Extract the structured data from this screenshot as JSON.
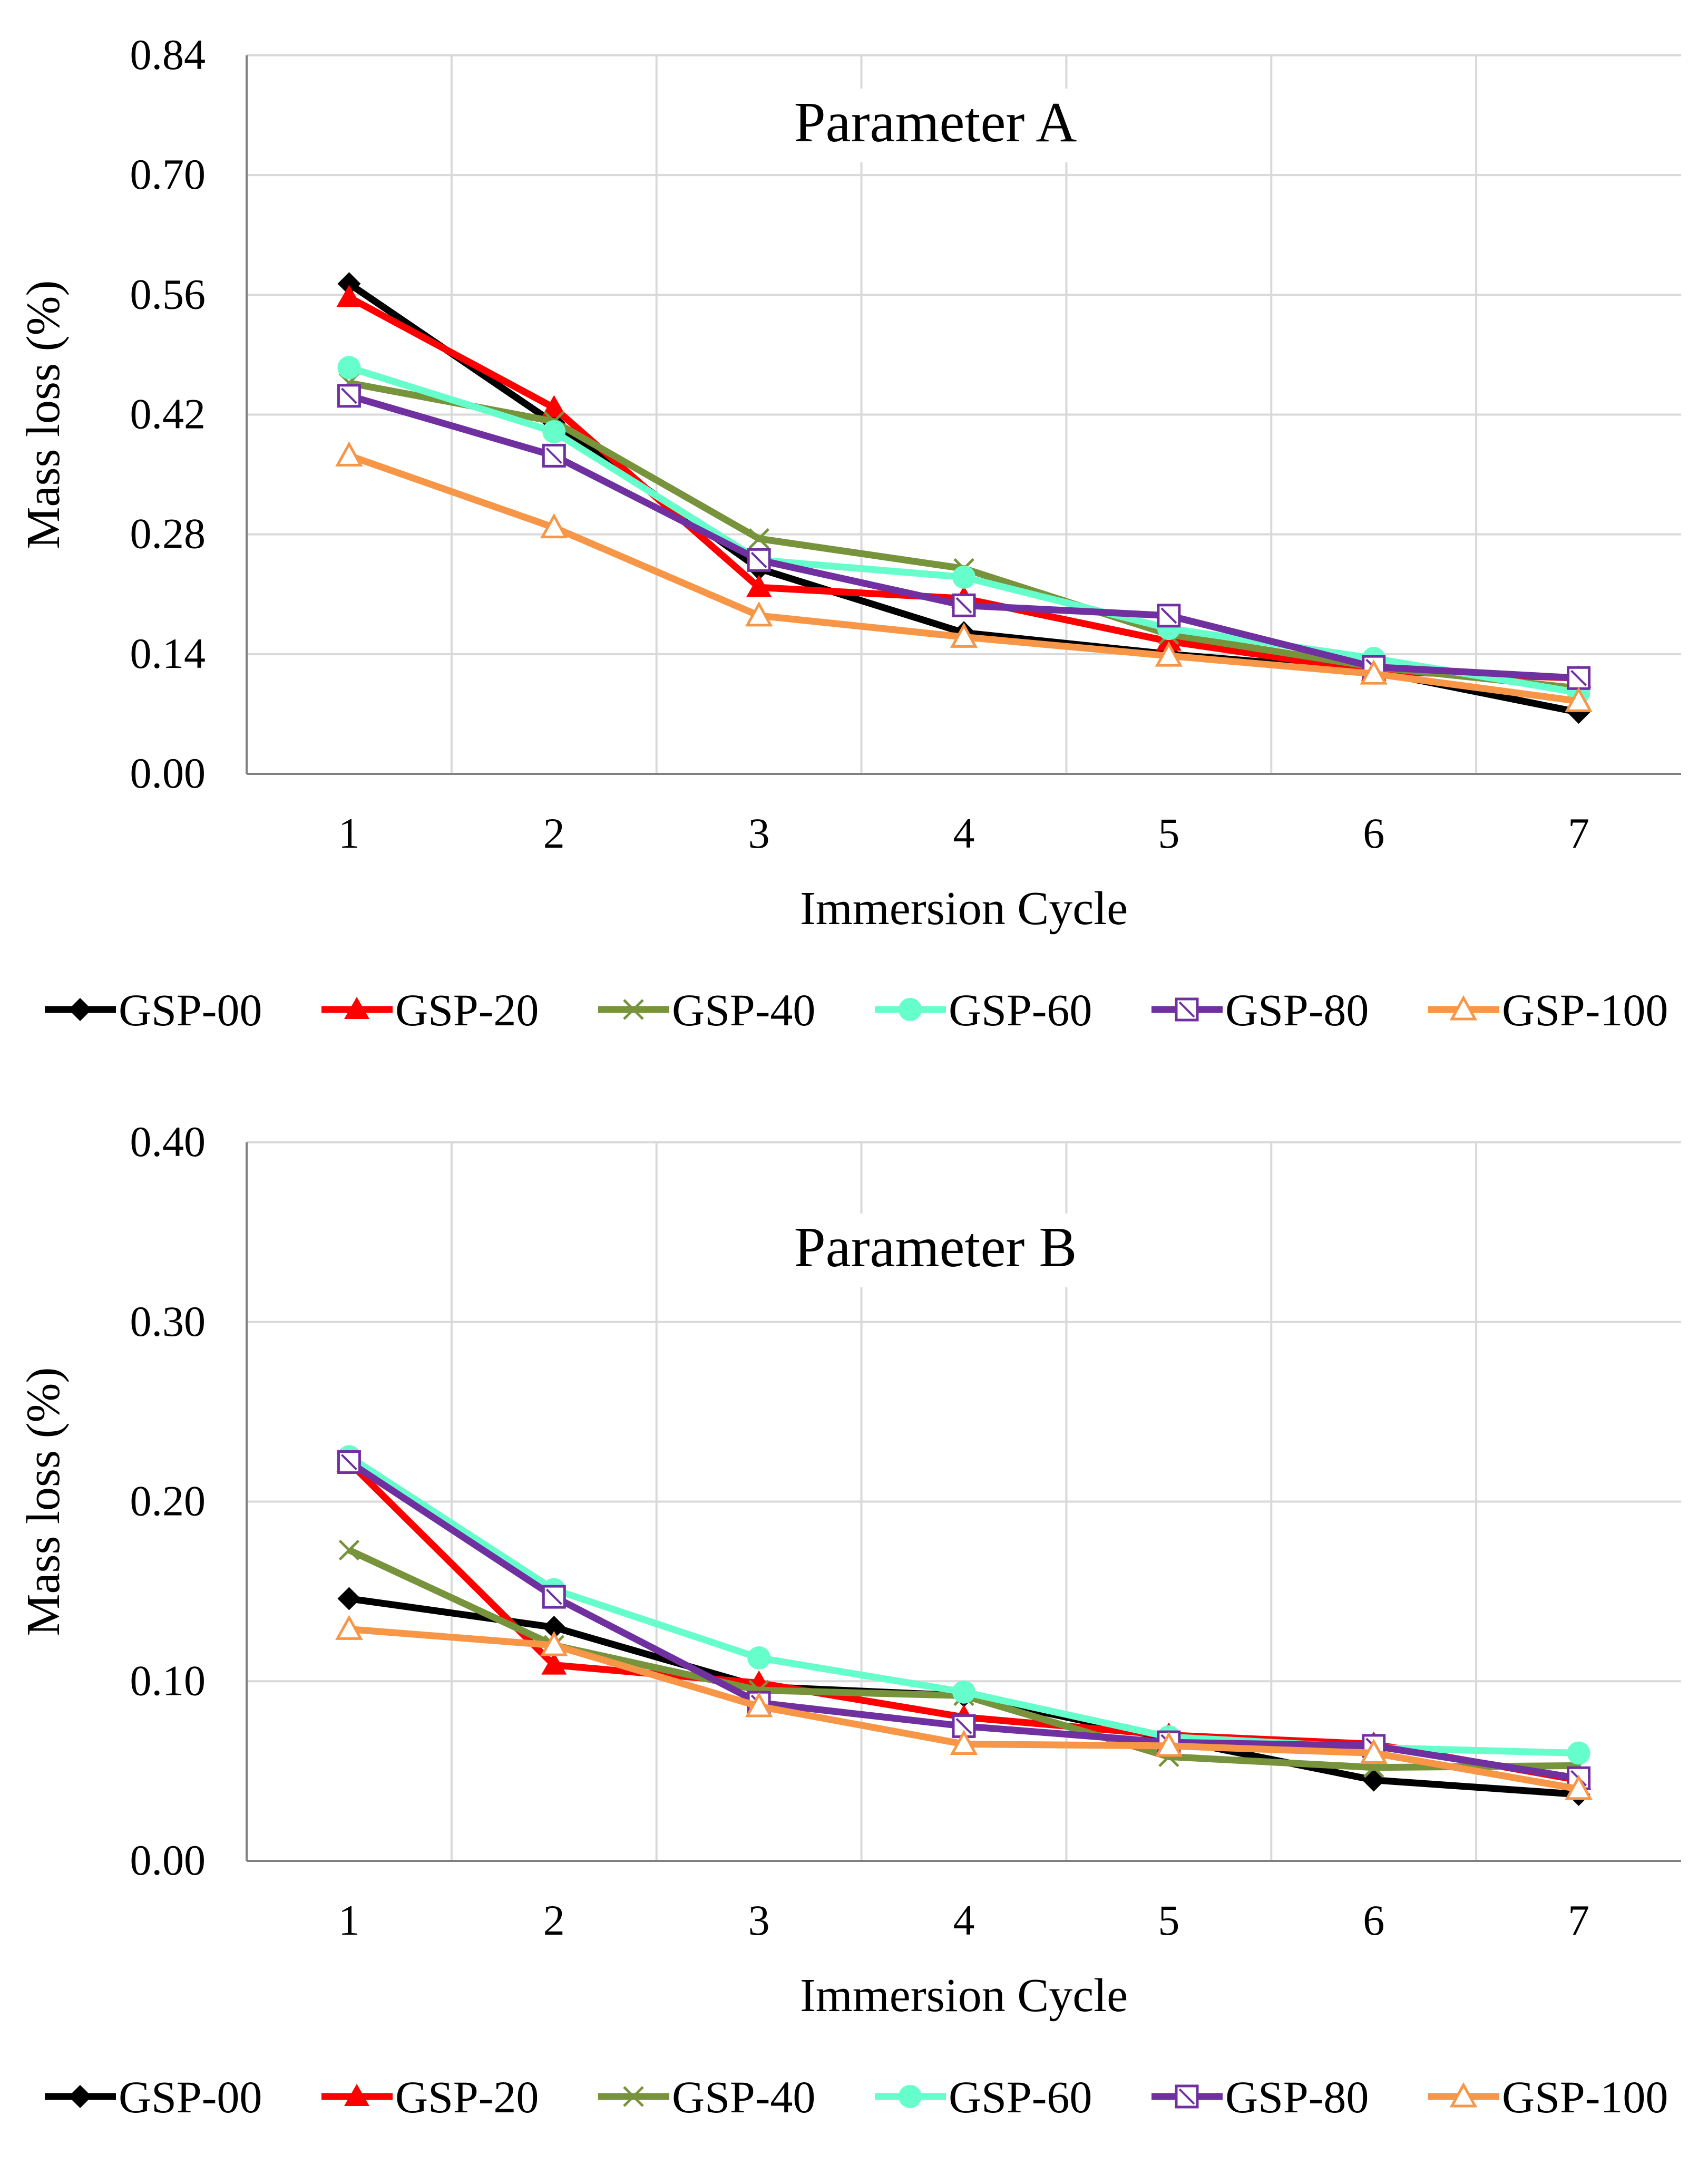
{
  "chart_data": [
    {
      "type": "line",
      "title": "Parameter A",
      "xlabel": "Immersion Cycle",
      "ylabel": "Mass loss (%)",
      "categories": [
        "1",
        "2",
        "3",
        "4",
        "5",
        "6",
        "7"
      ],
      "ylim": [
        0,
        0.84
      ],
      "yticks": [
        "0.00",
        "0.14",
        "0.28",
        "0.42",
        "0.56",
        "0.70",
        "0.84"
      ],
      "grid": true,
      "legend_position": "bottom",
      "series": [
        {
          "name": "GSP-00",
          "color": "#000000",
          "marker": "diamond",
          "values": [
            0.573,
            0.41,
            0.24,
            0.165,
            0.14,
            0.12,
            0.072
          ]
        },
        {
          "name": "GSP-20",
          "color": "#ff0000",
          "marker": "triangle",
          "values": [
            0.557,
            0.428,
            0.218,
            0.205,
            0.155,
            0.12,
            0.112
          ]
        },
        {
          "name": "GSP-40",
          "color": "#77933c",
          "marker": "x",
          "values": [
            0.457,
            0.412,
            0.275,
            0.24,
            0.163,
            0.125,
            0.1
          ]
        },
        {
          "name": "GSP-60",
          "color": "#66ffcc",
          "marker": "circle",
          "values": [
            0.475,
            0.4,
            0.25,
            0.23,
            0.17,
            0.135,
            0.095
          ]
        },
        {
          "name": "GSP-80",
          "color": "#7030a0",
          "marker": "square",
          "values": [
            0.442,
            0.372,
            0.25,
            0.197,
            0.185,
            0.125,
            0.112
          ]
        },
        {
          "name": "GSP-100",
          "color": "#f79646",
          "marker": "triangle-open",
          "values": [
            0.372,
            0.288,
            0.185,
            0.16,
            0.138,
            0.117,
            0.085
          ]
        }
      ]
    },
    {
      "type": "line",
      "title": "Parameter B",
      "xlabel": "Immersion Cycle",
      "ylabel": "Mass loss (%)",
      "categories": [
        "1",
        "2",
        "3",
        "4",
        "5",
        "6",
        "7"
      ],
      "ylim": [
        0,
        0.4
      ],
      "yticks": [
        "0.00",
        "0.10",
        "0.20",
        "0.30",
        "0.40"
      ],
      "grid": true,
      "legend_position": "bottom",
      "series": [
        {
          "name": "GSP-00",
          "color": "#000000",
          "marker": "diamond",
          "values": [
            0.146,
            0.13,
            0.097,
            0.092,
            0.068,
            0.045,
            0.037
          ]
        },
        {
          "name": "GSP-20",
          "color": "#ff0000",
          "marker": "triangle",
          "values": [
            0.222,
            0.109,
            0.099,
            0.08,
            0.07,
            0.065,
            0.045
          ]
        },
        {
          "name": "GSP-40",
          "color": "#77933c",
          "marker": "x",
          "values": [
            0.173,
            0.12,
            0.095,
            0.092,
            0.058,
            0.052,
            0.053
          ]
        },
        {
          "name": "GSP-60",
          "color": "#66ffcc",
          "marker": "circle",
          "values": [
            0.225,
            0.151,
            0.113,
            0.094,
            0.069,
            0.063,
            0.06
          ]
        },
        {
          "name": "GSP-80",
          "color": "#7030a0",
          "marker": "square",
          "values": [
            0.222,
            0.147,
            0.088,
            0.075,
            0.066,
            0.064,
            0.046
          ]
        },
        {
          "name": "GSP-100",
          "color": "#f79646",
          "marker": "triangle-open",
          "values": [
            0.129,
            0.12,
            0.086,
            0.065,
            0.064,
            0.06,
            0.04
          ]
        }
      ]
    }
  ]
}
